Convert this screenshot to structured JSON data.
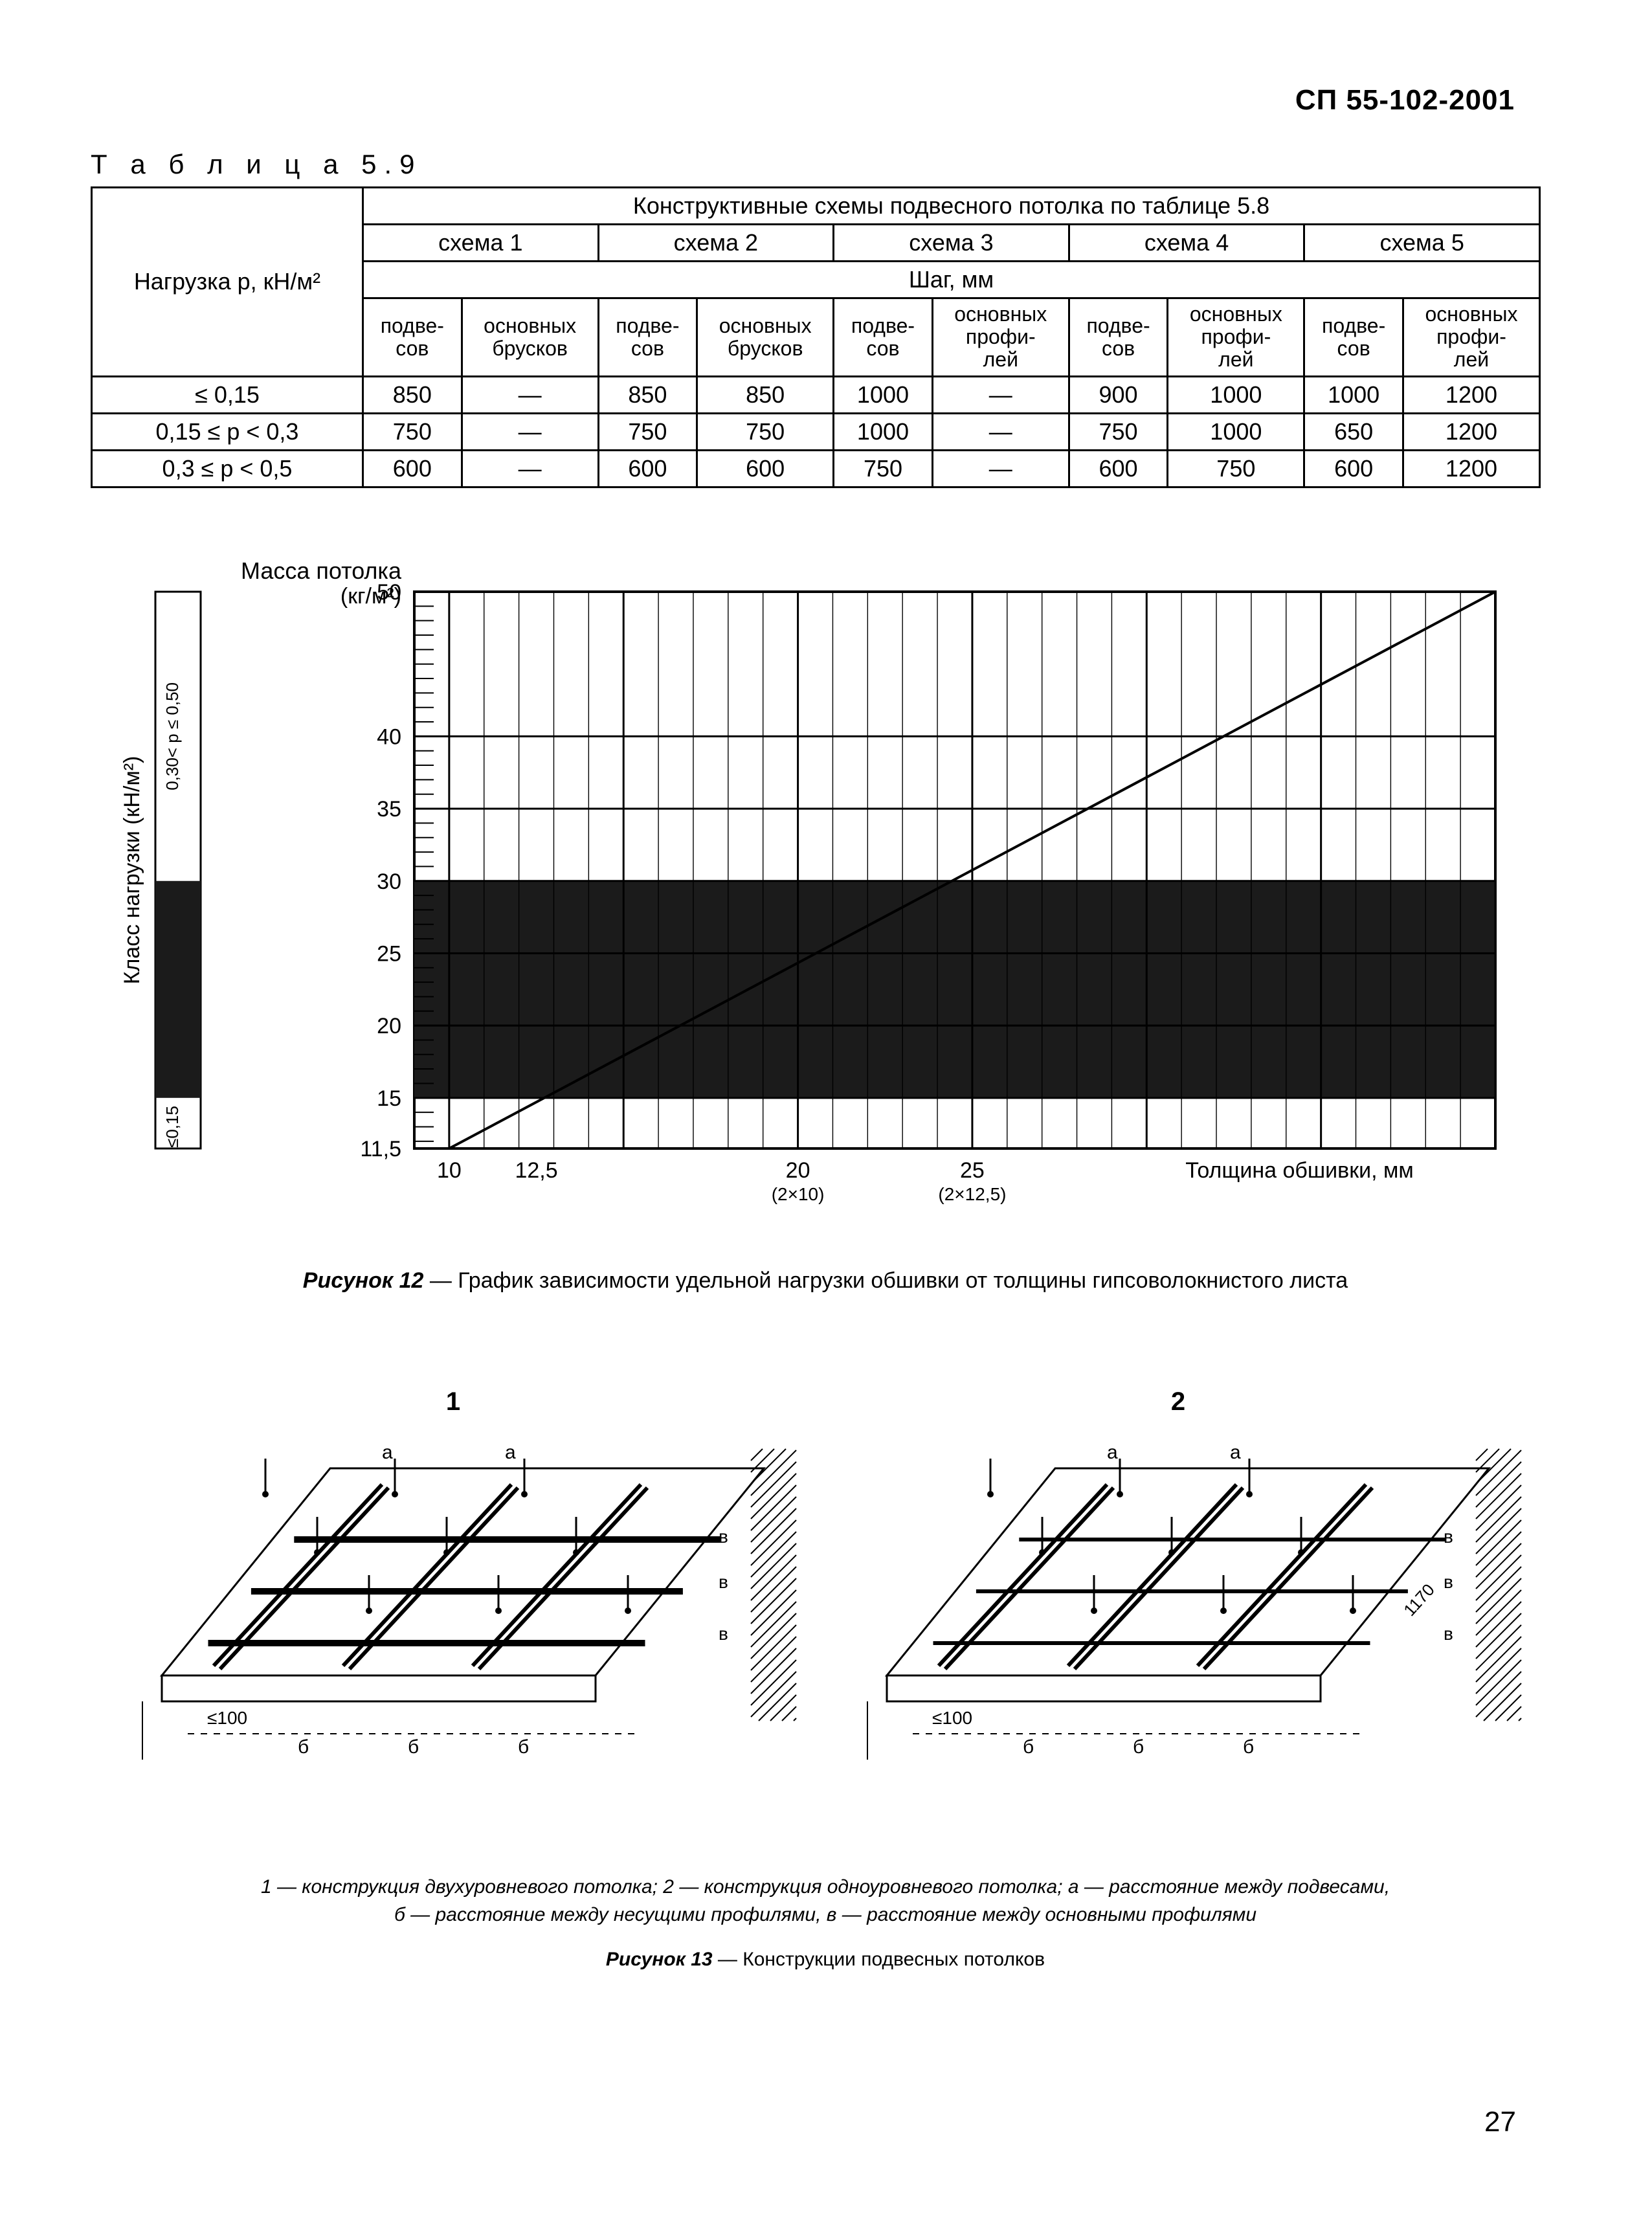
{
  "header": {
    "code": "СП 55-102-2001"
  },
  "table59": {
    "caption": "Т а б л и ц а  5.9",
    "top_header": "Конструктивные схемы подвесного потолка по таблице 5.8",
    "left_header": "Нагрузка p, кН/м²",
    "step_label": "Шаг, мм",
    "schemes": [
      "схема 1",
      "схема 2",
      "схема 3",
      "схема 4",
      "схема 5"
    ],
    "sub_pod": "подве-\nсов",
    "sub_brus": "основных\nбрусков",
    "sub_prof": "основных\nпрофи-\nлей",
    "rows": [
      {
        "load": "≤ 0,15",
        "c": [
          "850",
          "—",
          "850",
          "850",
          "1000",
          "—",
          "900",
          "1000",
          "1000",
          "1200"
        ]
      },
      {
        "load": "0,15 ≤ p < 0,3",
        "c": [
          "750",
          "—",
          "750",
          "750",
          "1000",
          "—",
          "750",
          "1000",
          "650",
          "1200"
        ]
      },
      {
        "load": "0,3 ≤ p < 0,5",
        "c": [
          "600",
          "—",
          "600",
          "600",
          "750",
          "—",
          "600",
          "750",
          "600",
          "1200"
        ]
      }
    ]
  },
  "chart": {
    "type": "line",
    "title_y": "Масса потолка",
    "title_y_unit": "(кг/м²)",
    "ylabel_side": "Класс нагрузки (кН/м²)",
    "side_band_labels": {
      "light": "≤0,15",
      "mid": "",
      "heavy": "0,30< p ≤ 0,50"
    },
    "xlabel_right": "Толщина обшивки, мм",
    "x_ticks": [
      {
        "x": 10,
        "label": "10",
        "sub": ""
      },
      {
        "x": 12.5,
        "label": "12,5",
        "sub": ""
      },
      {
        "x": 20,
        "label": "20",
        "sub": "(2×10)"
      },
      {
        "x": 25,
        "label": "25",
        "sub": "(2×12,5)"
      }
    ],
    "y_ticks": [
      11.5,
      15,
      20,
      25,
      30,
      35,
      40,
      50
    ],
    "xlim": [
      9,
      40
    ],
    "ylim": [
      11.5,
      50
    ],
    "dark_band_y": [
      15,
      30
    ],
    "line": {
      "points": [
        [
          10,
          11.5
        ],
        [
          40,
          50
        ]
      ],
      "stroke": "#000000",
      "width": 4
    },
    "grid_color": "#000000",
    "background_color": "#ffffff",
    "label_fontsize": 34,
    "tick_fontsize": 34
  },
  "fig12_caption_bold": "Рисунок 12",
  "fig12_caption_rest": " — График зависимости удельной нагрузки обшивки от толщины гипсоволокнистого листа",
  "fig13": {
    "label1": "1",
    "label2": "2",
    "edge_note": "≤100",
    "dim_a": "a",
    "dim_b": "б",
    "dim_v": "в",
    "dim_1170": "1170"
  },
  "fig13_caption_line1": "1 — конструкция двухуровневого потолка; 2 — конструкция одноуровневого потолка; a — расстояние между подвесами,",
  "fig13_caption_line2": "б — расстояние между несущими профилями, в — расстояние между основными профилями",
  "fig13_caption_bold": "Рисунок 13",
  "fig13_caption_rest": " — Конструкции подвесных потолков",
  "page_number": "27"
}
